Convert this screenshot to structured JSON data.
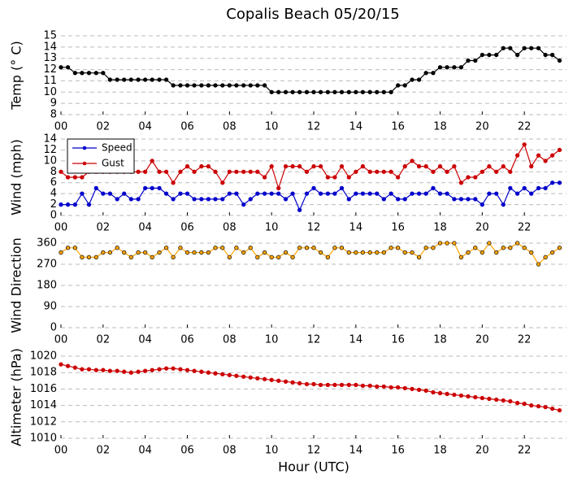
{
  "chart_data": [
    {
      "type": "line",
      "title": "Copalis Beach 05/20/15",
      "ylabel": "Temp (° C)",
      "color": "#000000",
      "grid": true,
      "x": [
        0,
        0.33,
        0.67,
        1,
        1.33,
        1.67,
        2,
        2.33,
        2.67,
        3,
        3.33,
        3.67,
        4,
        4.33,
        4.67,
        5,
        5.33,
        5.67,
        6,
        6.33,
        6.67,
        7,
        7.33,
        7.67,
        8,
        8.33,
        8.67,
        9,
        9.33,
        9.67,
        10,
        10.33,
        10.67,
        11,
        11.33,
        11.67,
        12,
        12.33,
        12.67,
        13,
        13.33,
        13.67,
        14,
        14.33,
        14.67,
        15,
        15.33,
        15.67,
        16,
        16.33,
        16.67,
        17,
        17.33,
        17.67,
        18,
        18.33,
        18.67,
        19,
        19.33,
        19.67,
        20,
        20.33,
        20.67,
        21,
        21.33,
        21.67,
        22,
        22.33,
        22.67,
        23,
        23.33,
        23.67
      ],
      "values": [
        12.2,
        12.2,
        11.7,
        11.7,
        11.7,
        11.7,
        11.7,
        11.1,
        11.1,
        11.1,
        11.1,
        11.1,
        11.1,
        11.1,
        11.1,
        11.1,
        10.6,
        10.6,
        10.6,
        10.6,
        10.6,
        10.6,
        10.6,
        10.6,
        10.6,
        10.6,
        10.6,
        10.6,
        10.6,
        10.6,
        10.0,
        10.0,
        10.0,
        10.0,
        10.0,
        10.0,
        10.0,
        10.0,
        10.0,
        10.0,
        10.0,
        10.0,
        10.0,
        10.0,
        10.0,
        10.0,
        10.0,
        10.0,
        10.6,
        10.6,
        11.1,
        11.1,
        11.7,
        11.7,
        12.2,
        12.2,
        12.2,
        12.2,
        12.8,
        12.8,
        13.3,
        13.3,
        13.3,
        13.9,
        13.9,
        13.3,
        13.9,
        13.9,
        13.9,
        13.3,
        13.3,
        12.8
      ],
      "xlim": [
        0,
        24
      ],
      "xticks": [
        {
          "value": 0,
          "label": "00"
        },
        {
          "value": 2,
          "label": "02"
        },
        {
          "value": 4,
          "label": "04"
        },
        {
          "value": 6,
          "label": "06"
        },
        {
          "value": 8,
          "label": "08"
        },
        {
          "value": 10,
          "label": "10"
        },
        {
          "value": 12,
          "label": "12"
        },
        {
          "value": 14,
          "label": "14"
        },
        {
          "value": 16,
          "label": "16"
        },
        {
          "value": 18,
          "label": "18"
        },
        {
          "value": 20,
          "label": "20"
        },
        {
          "value": 22,
          "label": "22"
        }
      ],
      "ylim": [
        8,
        15
      ],
      "yticks": [
        8,
        9,
        10,
        11,
        12,
        13,
        14,
        15
      ]
    },
    {
      "type": "line",
      "ylabel": "Wind (mph)",
      "grid": true,
      "legend": "upper left",
      "x": [
        0,
        0.33,
        0.67,
        1,
        1.33,
        1.67,
        2,
        2.33,
        2.67,
        3,
        3.33,
        3.67,
        4,
        4.33,
        4.67,
        5,
        5.33,
        5.67,
        6,
        6.33,
        6.67,
        7,
        7.33,
        7.67,
        8,
        8.33,
        8.67,
        9,
        9.33,
        9.67,
        10,
        10.33,
        10.67,
        11,
        11.33,
        11.67,
        12,
        12.33,
        12.67,
        13,
        13.33,
        13.67,
        14,
        14.33,
        14.67,
        15,
        15.33,
        15.67,
        16,
        16.33,
        16.67,
        17,
        17.33,
        17.67,
        18,
        18.33,
        18.67,
        19,
        19.33,
        19.67,
        20,
        20.33,
        20.67,
        21,
        21.33,
        21.67,
        22,
        22.33,
        22.67,
        23,
        23.33,
        23.67
      ],
      "series": [
        {
          "name": "Speed",
          "color": "#0000cc",
          "values": [
            2,
            2,
            2,
            4,
            2,
            5,
            4,
            4,
            3,
            4,
            3,
            3,
            5,
            5,
            5,
            4,
            3,
            4,
            4,
            3,
            3,
            3,
            3,
            3,
            4,
            4,
            2,
            3,
            4,
            4,
            4,
            4,
            3,
            4,
            1,
            4,
            5,
            4,
            4,
            4,
            5,
            3,
            4,
            4,
            4,
            4,
            3,
            4,
            3,
            3,
            4,
            4,
            4,
            5,
            4,
            4,
            3,
            3,
            3,
            3,
            2,
            4,
            4,
            2,
            5,
            4,
            5,
            4,
            5,
            5,
            6,
            6
          ]
        },
        {
          "name": "Gust",
          "color": "#cc0000",
          "values": [
            8,
            7,
            7,
            7,
            8,
            8,
            8,
            8,
            8,
            8,
            8,
            8,
            8,
            10,
            8,
            8,
            6,
            8,
            9,
            8,
            9,
            9,
            8,
            6,
            8,
            8,
            8,
            8,
            8,
            7,
            9,
            5,
            9,
            9,
            9,
            8,
            9,
            9,
            7,
            7,
            9,
            7,
            8,
            9,
            8,
            8,
            8,
            8,
            7,
            9,
            10,
            9,
            9,
            8,
            9,
            8,
            9,
            6,
            7,
            7,
            8,
            9,
            8,
            9,
            8,
            11,
            13,
            9,
            11,
            10,
            11,
            12
          ]
        }
      ],
      "xlim": [
        0,
        24
      ],
      "xticks": [
        {
          "value": 0,
          "label": "00"
        },
        {
          "value": 2,
          "label": "02"
        },
        {
          "value": 4,
          "label": "04"
        },
        {
          "value": 6,
          "label": "06"
        },
        {
          "value": 8,
          "label": "08"
        },
        {
          "value": 10,
          "label": "10"
        },
        {
          "value": 12,
          "label": "12"
        },
        {
          "value": 14,
          "label": "14"
        },
        {
          "value": 16,
          "label": "16"
        },
        {
          "value": 18,
          "label": "18"
        },
        {
          "value": 20,
          "label": "20"
        },
        {
          "value": 22,
          "label": "22"
        }
      ],
      "ylim": [
        0,
        14
      ],
      "yticks": [
        0,
        2,
        4,
        6,
        8,
        10,
        12,
        14
      ]
    },
    {
      "type": "line",
      "ylabel": "Wind Direction",
      "color": "#ffa500",
      "grid": true,
      "x": [
        0,
        0.33,
        0.67,
        1,
        1.33,
        1.67,
        2,
        2.33,
        2.67,
        3,
        3.33,
        3.67,
        4,
        4.33,
        4.67,
        5,
        5.33,
        5.67,
        6,
        6.33,
        6.67,
        7,
        7.33,
        7.67,
        8,
        8.33,
        8.67,
        9,
        9.33,
        9.67,
        10,
        10.33,
        10.67,
        11,
        11.33,
        11.67,
        12,
        12.33,
        12.67,
        13,
        13.33,
        13.67,
        14,
        14.33,
        14.67,
        15,
        15.33,
        15.67,
        16,
        16.33,
        16.67,
        17,
        17.33,
        17.67,
        18,
        18.33,
        18.67,
        19,
        19.33,
        19.67,
        20,
        20.33,
        20.67,
        21,
        21.33,
        21.67,
        22,
        22.33,
        22.67,
        23,
        23.33,
        23.67
      ],
      "values": [
        320,
        340,
        340,
        300,
        300,
        300,
        320,
        320,
        340,
        320,
        300,
        320,
        320,
        300,
        320,
        340,
        300,
        340,
        320,
        320,
        320,
        320,
        340,
        340,
        300,
        340,
        320,
        340,
        300,
        320,
        300,
        300,
        320,
        300,
        340,
        340,
        340,
        320,
        300,
        340,
        340,
        320,
        320,
        320,
        320,
        320,
        320,
        340,
        340,
        320,
        320,
        300,
        340,
        340,
        360,
        360,
        360,
        300,
        320,
        340,
        320,
        360,
        320,
        340,
        340,
        360,
        340,
        320,
        270,
        300,
        320,
        340
      ],
      "xlim": [
        0,
        24
      ],
      "xticks": [
        {
          "value": 0,
          "label": "00"
        },
        {
          "value": 2,
          "label": "02"
        },
        {
          "value": 4,
          "label": "04"
        },
        {
          "value": 6,
          "label": "06"
        },
        {
          "value": 8,
          "label": "08"
        },
        {
          "value": 10,
          "label": "10"
        },
        {
          "value": 12,
          "label": "12"
        },
        {
          "value": 14,
          "label": "14"
        },
        {
          "value": 16,
          "label": "16"
        },
        {
          "value": 18,
          "label": "18"
        },
        {
          "value": 20,
          "label": "20"
        },
        {
          "value": 22,
          "label": "22"
        }
      ],
      "ylim": [
        0,
        360
      ],
      "yticks": [
        0,
        90,
        180,
        270,
        360
      ]
    },
    {
      "type": "line",
      "ylabel": "Altimeter (hPa)",
      "xlabel": "Hour (UTC)",
      "color": "#cc0000",
      "grid": true,
      "x": [
        0,
        0.33,
        0.67,
        1,
        1.33,
        1.67,
        2,
        2.33,
        2.67,
        3,
        3.33,
        3.67,
        4,
        4.33,
        4.67,
        5,
        5.33,
        5.67,
        6,
        6.33,
        6.67,
        7,
        7.33,
        7.67,
        8,
        8.33,
        8.67,
        9,
        9.33,
        9.67,
        10,
        10.33,
        10.67,
        11,
        11.33,
        11.67,
        12,
        12.33,
        12.67,
        13,
        13.33,
        13.67,
        14,
        14.33,
        14.67,
        15,
        15.33,
        15.67,
        16,
        16.33,
        16.67,
        17,
        17.33,
        17.67,
        18,
        18.33,
        18.67,
        19,
        19.33,
        19.67,
        20,
        20.33,
        20.67,
        21,
        21.33,
        21.67,
        22,
        22.33,
        22.67,
        23,
        23.33,
        23.67
      ],
      "values": [
        1019.0,
        1018.8,
        1018.6,
        1018.4,
        1018.4,
        1018.3,
        1018.3,
        1018.2,
        1018.2,
        1018.1,
        1018.0,
        1018.1,
        1018.2,
        1018.3,
        1018.4,
        1018.5,
        1018.5,
        1018.4,
        1018.3,
        1018.2,
        1018.1,
        1018.0,
        1017.9,
        1017.8,
        1017.7,
        1017.6,
        1017.5,
        1017.4,
        1017.3,
        1017.2,
        1017.1,
        1017.0,
        1016.9,
        1016.8,
        1016.7,
        1016.6,
        1016.6,
        1016.5,
        1016.5,
        1016.5,
        1016.5,
        1016.5,
        1016.5,
        1016.4,
        1016.4,
        1016.3,
        1016.3,
        1016.2,
        1016.2,
        1016.1,
        1016.0,
        1015.9,
        1015.8,
        1015.6,
        1015.5,
        1015.4,
        1015.3,
        1015.2,
        1015.1,
        1015.0,
        1014.9,
        1014.8,
        1014.7,
        1014.6,
        1014.5,
        1014.3,
        1014.2,
        1014.0,
        1013.9,
        1013.8,
        1013.6,
        1013.4
      ],
      "xlim": [
        0,
        24
      ],
      "xticks": [
        {
          "value": 0,
          "label": "00"
        },
        {
          "value": 2,
          "label": "02"
        },
        {
          "value": 4,
          "label": "04"
        },
        {
          "value": 6,
          "label": "06"
        },
        {
          "value": 8,
          "label": "08"
        },
        {
          "value": 10,
          "label": "10"
        },
        {
          "value": 12,
          "label": "12"
        },
        {
          "value": 14,
          "label": "14"
        },
        {
          "value": 16,
          "label": "16"
        },
        {
          "value": 18,
          "label": "18"
        },
        {
          "value": 20,
          "label": "20"
        },
        {
          "value": 22,
          "label": "22"
        }
      ],
      "ylim": [
        1010,
        1020
      ],
      "yticks": [
        1010,
        1012,
        1014,
        1016,
        1018,
        1020
      ]
    }
  ]
}
